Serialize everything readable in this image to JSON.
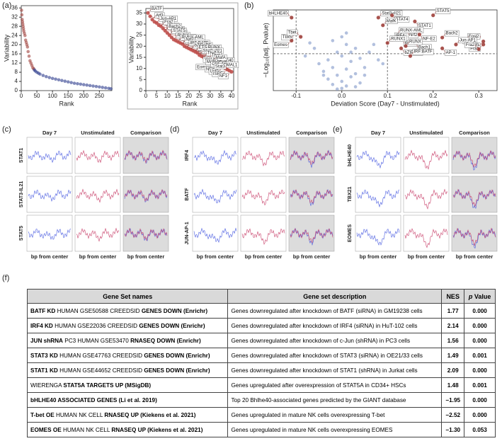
{
  "panel_labels": [
    "(a)",
    "(b)",
    "(c)",
    "(d)",
    "(e)",
    "(f)"
  ],
  "chart_data": [
    {
      "type": "scatter",
      "xlabel": "Rank",
      "ylabel": "Variability",
      "xlim": [
        0,
        290
      ],
      "ylim": [
        0,
        37
      ],
      "xticks": [
        0,
        50,
        100,
        150,
        200,
        250
      ],
      "yticks": [
        0,
        4,
        8,
        12,
        16,
        20,
        24,
        28,
        32,
        36
      ],
      "series": [
        {
          "color": "#a0413c",
          "x": [
            1,
            2,
            3,
            4,
            5,
            6,
            7,
            8,
            10,
            12,
            14,
            16,
            18,
            20,
            22,
            25,
            28,
            31,
            34,
            37,
            40
          ],
          "values": [
            35,
            33,
            31,
            30,
            29,
            28,
            27,
            26,
            25,
            24,
            22,
            21,
            20,
            19,
            17,
            15,
            13,
            12,
            11,
            10,
            9.5
          ]
        },
        {
          "color": "#2b3a8c",
          "x": [
            42,
            45,
            50,
            55,
            60,
            70,
            80,
            90,
            100,
            110,
            120,
            130,
            140,
            150,
            160,
            170,
            180,
            190,
            200,
            210,
            220,
            230,
            240,
            250,
            260,
            270,
            280,
            287
          ],
          "values": [
            9,
            8.5,
            8,
            7.6,
            7.2,
            6.6,
            6.1,
            5.7,
            5.3,
            5,
            4.7,
            4.4,
            4.1,
            3.8,
            3.5,
            3.2,
            3,
            2.8,
            2.6,
            2.4,
            2.2,
            2,
            1.8,
            1.6,
            1.4,
            1.2,
            1.0,
            0.8
          ]
        }
      ]
    },
    {
      "type": "scatter",
      "xlabel": "Rank",
      "ylabel": "Variability",
      "xlim": [
        0,
        41
      ],
      "ylim": [
        0,
        37
      ],
      "xticks": [
        0,
        5,
        10,
        15,
        20,
        25,
        30,
        35,
        40
      ],
      "yticks": [
        0,
        5,
        10,
        15,
        20,
        25,
        30,
        35
      ],
      "series": [
        {
          "color": "#c0504d",
          "labels": [
            "BATF",
            "Fra1",
            "Atf3",
            "Fosl2",
            "Jun-AP1",
            "CTCF",
            "Fra2",
            "AP-1",
            "Bach2",
            "RUNX2",
            "STAT5",
            "RUNX1",
            "RUNX",
            "Bach1",
            "RUNX-AML",
            "NF-E2",
            "Nrf2",
            "BORIS",
            "IRF:BATF",
            "STAT1",
            "bZIP:IRF",
            "STAT4",
            "ETS:RUNX",
            "IRF4",
            "Stat3+Il21",
            "bHLHE40",
            "Tbx5",
            "Bcl6",
            "Tbet",
            "BMAL1",
            "MafA",
            "Eomes",
            "YY1",
            "NFY",
            "MafK",
            "Usf2",
            "CRE",
            "ISRE",
            "Stat3",
            "NF1"
          ],
          "x": [
            1,
            2,
            3,
            4,
            5,
            6,
            7,
            8,
            9,
            10,
            11,
            12,
            13,
            14,
            15,
            16,
            17,
            18,
            19,
            20,
            21,
            22,
            23,
            24,
            25,
            26,
            27,
            28,
            29,
            30,
            31,
            32,
            33,
            34,
            35,
            36,
            37,
            38,
            39,
            40
          ],
          "values": [
            35,
            33.5,
            32,
            31,
            30.5,
            29.5,
            29,
            28,
            27,
            26,
            25,
            24,
            23,
            22.5,
            22,
            21.5,
            21,
            20,
            19.5,
            19,
            18.5,
            18,
            17.5,
            17,
            16,
            15.5,
            15,
            14.5,
            14,
            13.5,
            13,
            12.5,
            12,
            11.5,
            11,
            10.5,
            10,
            9.5,
            9,
            8.5
          ]
        }
      ]
    },
    {
      "type": "scatter",
      "xlabel": "Deviation Score (Day7 - Unstimulated)",
      "ylabel": "−Log₁₀(adj. Pvalue)",
      "xlim": [
        -0.15,
        0.34
      ],
      "ylim": [
        0,
        10.5
      ],
      "xticks": [
        -0.1,
        {
          "value": 0,
          "label": "0.0"
        },
        0.1,
        0.2,
        0.3
      ],
      "thresholds": {
        "x": [
          -0.1,
          0.1
        ],
        "y": 4.8
      },
      "series": [
        {
          "color": "#7f96c8",
          "x": [
            -0.05,
            -0.04,
            -0.03,
            -0.03,
            -0.02,
            -0.02,
            -0.01,
            -0.01,
            0,
            0,
            0,
            0.01,
            0.01,
            0.01,
            0.02,
            0.02,
            0.03,
            0.03,
            0.04,
            0.05,
            0.06,
            -0.06,
            -0.07,
            0.07,
            0.08,
            -0.02,
            0,
            0.01,
            0.02,
            -0.01,
            0.04,
            -0.04,
            0.05,
            0.03,
            0.09,
            -0.08
          ],
          "values": [
            3.5,
            2.5,
            4,
            1.5,
            3,
            0.8,
            2,
            5,
            0.3,
            1.2,
            4.5,
            2.8,
            0.6,
            6,
            1.8,
            3.8,
            2.2,
            5.5,
            4.2,
            3,
            5,
            5.5,
            6.2,
            6,
            4,
            6.5,
            7,
            7.5,
            5,
            0.2,
            1,
            2,
            2,
            0.5,
            3.5,
            4.5
          ]
        },
        {
          "color": "#a0413c",
          "labels": [
            "bHLHE40",
            "Tbx5",
            "Tbet",
            "Eomes",
            "Stat3+Il21",
            "STAT4",
            "STAT5",
            "STAT1",
            "MafK",
            "Nrf2",
            "RUNX-AML",
            "NF-E2",
            "IRF4",
            "RUNX2",
            "Bach2",
            "BATF",
            "RUNX1",
            "Bach1",
            "Fosl2",
            "Atf3",
            "Jun-AP1",
            "Fra1",
            "RUNX",
            "AP-1",
            "Fra2",
            "bZIP:IRF",
            "IRF:BATF"
          ],
          "x": [
            -0.11,
            -0.1,
            -0.09,
            -0.11,
            0.08,
            0.11,
            0.2,
            0.16,
            0.09,
            0.14,
            0.12,
            0.17,
            0.11,
            0.13,
            0.22,
            0.3,
            0.1,
            0.16,
            0.27,
            0.31,
            0.25,
            0.31,
            0.14,
            0.22,
            0.3,
            0.13,
            0.15
          ],
          "values": [
            9.5,
            7.5,
            7,
            6.5,
            9.5,
            9.8,
            9.8,
            9,
            8.5,
            7.8,
            7.3,
            7.3,
            6.6,
            6.7,
            6.9,
            7,
            6.2,
            6.2,
            6.5,
            6.4,
            6,
            6,
            5.8,
            5.5,
            5.4,
            5.5,
            4.5
          ]
        }
      ]
    }
  ],
  "profiles": {
    "columns": [
      "Day 7",
      "Unstimulated",
      "Comparison"
    ],
    "xlabel": "bp from center",
    "groups": [
      {
        "rows": [
          "STAT1",
          "STAT3-IL21",
          "STAT5"
        ]
      },
      {
        "rows": [
          "IRF4",
          "BATF",
          "JUN-AP-1"
        ]
      },
      {
        "rows": [
          "bHLHE40",
          "TBX21",
          "EOMES"
        ]
      }
    ]
  },
  "table": {
    "header": [
      [
        {
          "text": "Gene Set names",
          "bold": true
        }
      ],
      [
        {
          "text": "Gene set description",
          "bold": true
        }
      ],
      [
        {
          "text": "NES",
          "bold": true
        }
      ],
      [
        {
          "text": "p",
          "bold": true,
          "italic": true
        },
        {
          "text": " Value",
          "bold": true
        }
      ]
    ],
    "rows": [
      [
        [
          {
            "text": "BATF KD",
            "bold": true
          },
          {
            "text": " HUMAN GSE50588 CREEDSID "
          },
          {
            "text": "GENES DOWN (Enrichr)",
            "bold": true
          }
        ],
        "Genes downregulated after knockdown of BATF (siRNA) in GM19238 cells",
        "1.77",
        "0.000"
      ],
      [
        [
          {
            "text": "IRF4 KD",
            "bold": true
          },
          {
            "text": " HUMAN GSE22036 CREEDSID "
          },
          {
            "text": "GENES DOWN (Enrichr)",
            "bold": true
          }
        ],
        "Genes downregulated after knockdown of IRF4 (siRNA) in HuT-102 cells",
        "2.14",
        "0.000"
      ],
      [
        [
          {
            "text": "JUN shRNA",
            "bold": true
          },
          {
            "text": " PC3 HUMAN GSE53470 "
          },
          {
            "text": "RNASEQ DOWN (Enrichr)",
            "bold": true
          }
        ],
        "Genes downregulated after knockdown of c-Jun (shRNA) in PC3 cells",
        "1.56",
        "0.000"
      ],
      [
        [
          {
            "text": "STAT3 KD",
            "bold": true
          },
          {
            "text": " HUMAN GSE47763 CREEDSID "
          },
          {
            "text": "GENES DOWN (Enrichr)",
            "bold": true
          }
        ],
        "Genes downregulated after knockdown of STAT3 (siRNA) in OE21/33 cells",
        "1.49",
        "0.001"
      ],
      [
        [
          {
            "text": "STAT1 KD",
            "bold": true
          },
          {
            "text": " HUMAN GSE44652 CREEDSID "
          },
          {
            "text": "GENES DOWN (Enrichr)",
            "bold": true
          }
        ],
        "Genes downregulated after knockdown of STAT1 (shRNA) in Jurkat cells",
        "2.09",
        "0.000"
      ],
      [
        [
          {
            "text": "WIERENGA "
          },
          {
            "text": "STAT5A TARGETS UP (MSigDB)",
            "bold": true
          }
        ],
        "Genes upregulated after overexpression of STAT5A in CD34+ HSCs",
        "1.48",
        "0.001"
      ],
      [
        [
          {
            "text": "bHLHE40 ASSOCIATED GENES (Li et al. 2019)",
            "bold": true
          }
        ],
        "Top 20 Bhlhe40-associated genes predicted by the GIANT database",
        "−1.95",
        "0.000"
      ],
      [
        [
          {
            "text": "T-bet OE",
            "bold": true
          },
          {
            "text": " HUMAN NK CELL "
          },
          {
            "text": "RNASEQ UP (Kiekens et al. 2021)",
            "bold": true
          }
        ],
        "Genes upregulated in mature NK cells overexpressing T-bet",
        "−2.52",
        "0.000"
      ],
      [
        [
          {
            "text": "EOMES OE",
            "bold": true
          },
          {
            "text": " HUMAN NK CELL "
          },
          {
            "text": "RNASEQ UP (Kiekens et al. 2021)",
            "bold": true
          }
        ],
        "Genes upregulated in mature NK cells overexpressing EOMES",
        "−1.30",
        "0.053"
      ]
    ]
  }
}
